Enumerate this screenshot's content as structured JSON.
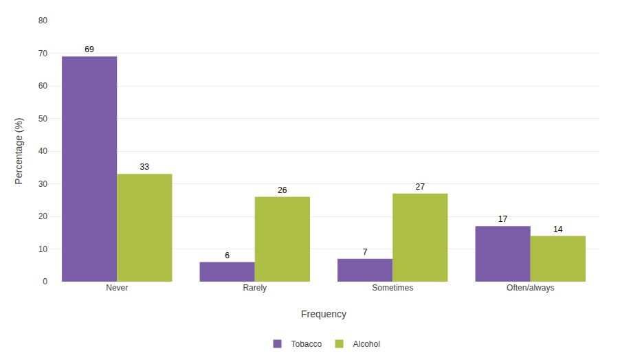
{
  "chart_data": {
    "type": "bar",
    "categories": [
      "Never",
      "Rarely",
      "Sometimes",
      "Often/always"
    ],
    "series": [
      {
        "name": "Tobacco",
        "color": "#7B5EA7",
        "values": [
          69,
          6,
          7,
          17
        ]
      },
      {
        "name": "Alcohol",
        "color": "#ADBE45",
        "values": [
          33,
          26,
          27,
          14
        ]
      }
    ],
    "xlabel": "Frequency",
    "ylabel": "Percentage (%)",
    "ylim": [
      0,
      80
    ],
    "yticks": [
      0,
      10,
      20,
      30,
      40,
      50,
      60,
      70,
      80
    ],
    "grid": true,
    "legend": "bottom",
    "data_labels": true
  }
}
